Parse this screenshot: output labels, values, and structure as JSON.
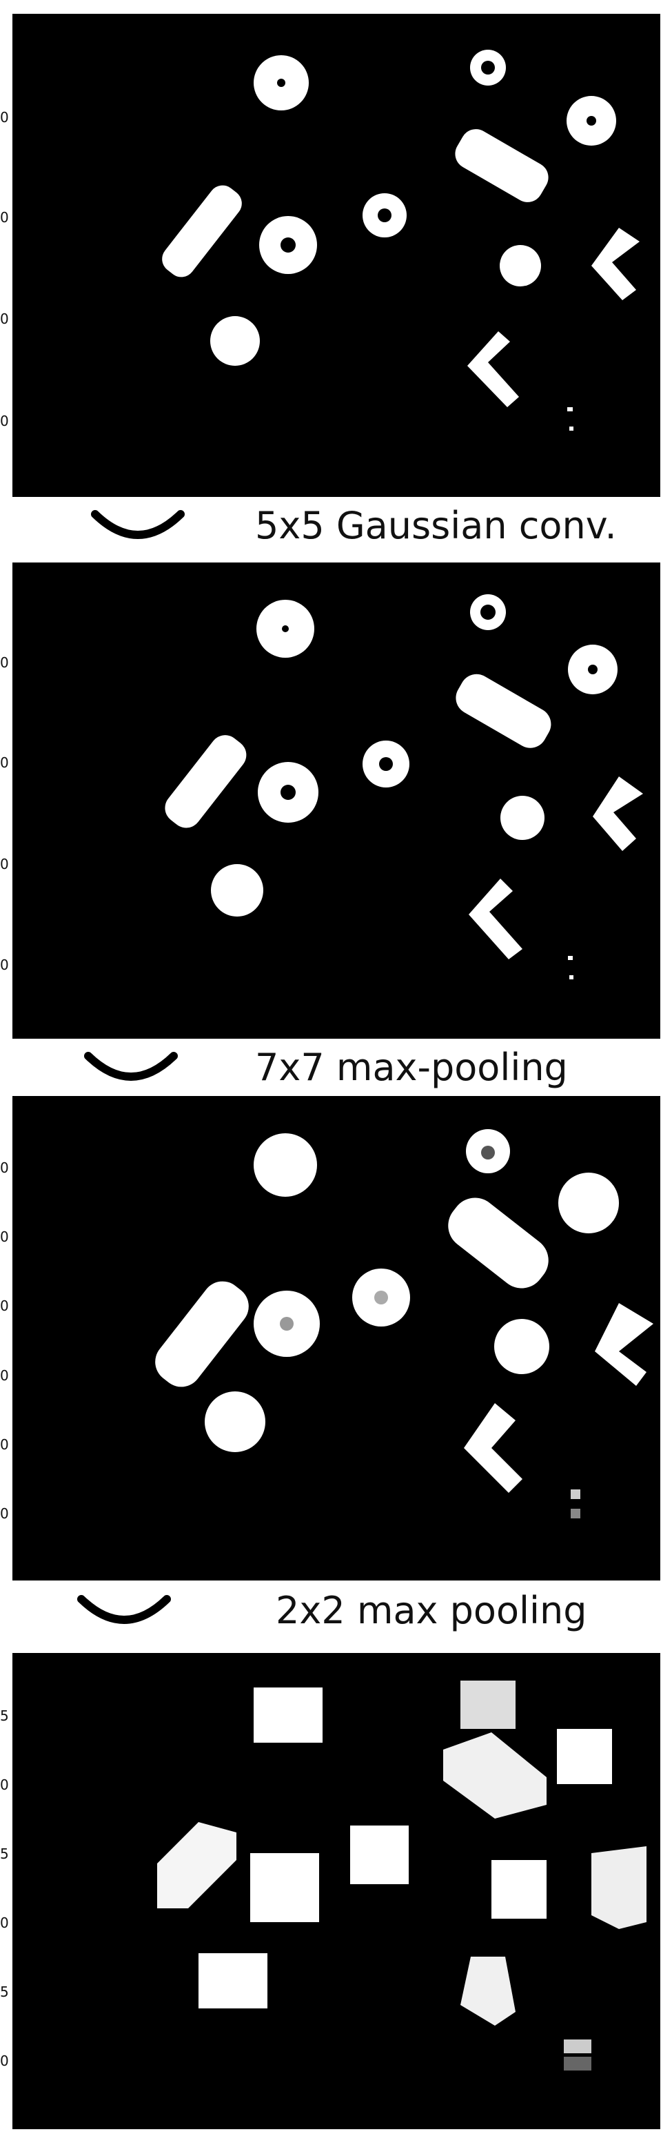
{
  "steps": [
    {
      "label": "5x5 Gaussian conv."
    },
    {
      "label": "7x7 max-pooling"
    },
    {
      "label": "2x2 max pooling"
    }
  ],
  "colors": {
    "background": "#000000",
    "objects": "#ffffff",
    "page": "#ffffff"
  },
  "icons": [
    "chevron-down-icon"
  ]
}
